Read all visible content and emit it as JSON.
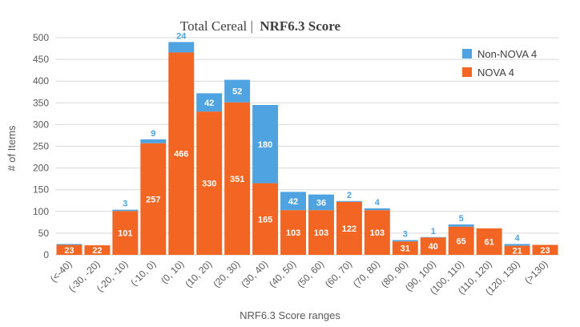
{
  "chart_data": {
    "type": "bar",
    "stacked": true,
    "title_part1": "Total Cereal |",
    "title_part2": "NRF6.3 Score",
    "xlabel": "NRF6.3 Score ranges",
    "ylabel": "# of Items",
    "ylim": [
      0,
      500
    ],
    "yticks": [
      0,
      50,
      100,
      150,
      200,
      250,
      300,
      350,
      400,
      450,
      500
    ],
    "grid": true,
    "legend_position": "top-right",
    "categories": [
      "(<-40)",
      "(-30, -20)",
      "(-20, -10)",
      "(-10, 0)",
      "(0, 10)",
      "(10, 20)",
      "(20, 30)",
      "(30, 40)",
      "(40, 50)",
      "(50, 60)",
      "(60, 70)",
      "(70, 80)",
      "(80, 90)",
      "(90, 100)",
      "(100, 110)",
      "(110, 120)",
      "(120, 130)",
      "(>130)"
    ],
    "series": [
      {
        "name": "NOVA 4",
        "color": "#f26522",
        "values": [
          23,
          22,
          101,
          257,
          466,
          330,
          351,
          165,
          103,
          103,
          122,
          103,
          31,
          40,
          65,
          61,
          21,
          23
        ],
        "labels": [
          "23",
          "22",
          "101",
          "257",
          "466",
          "330",
          "351",
          "165",
          "103",
          "103",
          "122",
          "103",
          "31",
          "40",
          "65",
          "61",
          "21",
          "23"
        ]
      },
      {
        "name": "Non-NOVA 4",
        "color": "#4ea3e0",
        "values": [
          2,
          0,
          3,
          9,
          24,
          42,
          52,
          180,
          42,
          36,
          2,
          4,
          3,
          1,
          5,
          0,
          4,
          0
        ],
        "labels": [
          "",
          "",
          "3",
          "9",
          "24",
          "42",
          "52",
          "180",
          "42",
          "36",
          "2",
          "4",
          "3",
          "1",
          "5",
          "",
          "4",
          ""
        ]
      }
    ]
  }
}
